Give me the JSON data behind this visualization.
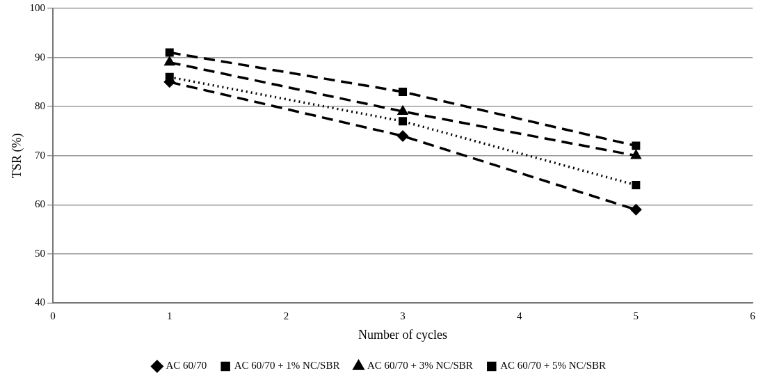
{
  "chart_data": {
    "type": "line",
    "xlabel": "Number of cycles",
    "ylabel": "TSR (%)",
    "x": [
      1,
      3,
      5
    ],
    "series": [
      {
        "name": "AC 60/70",
        "color": "#000000",
        "values": [
          85,
          74,
          59
        ],
        "marker": "diamond",
        "line_style": "dashed"
      },
      {
        "name": "AC 60/70 + 1% NC/SBR",
        "color": "#000000",
        "values": [
          86,
          77,
          64
        ],
        "marker": "square",
        "line_style": "dotted"
      },
      {
        "name": "AC 60/70 + 3% NC/SBR",
        "color": "#000000",
        "values": [
          89,
          79,
          70
        ],
        "marker": "triangle",
        "line_style": "dashed"
      },
      {
        "name": "AC 60/70 + 5% NC/SBR",
        "color": "#000000",
        "values": [
          91,
          83,
          72
        ],
        "marker": "square",
        "line_style": "dashed"
      }
    ],
    "xlim": [
      0,
      6
    ],
    "xticks": [
      0,
      1,
      2,
      3,
      4,
      5,
      6
    ],
    "ylim": [
      40,
      100
    ],
    "yticks": [
      40,
      50,
      60,
      70,
      80,
      90,
      100
    ],
    "grid": "y",
    "legend": "bottom"
  }
}
